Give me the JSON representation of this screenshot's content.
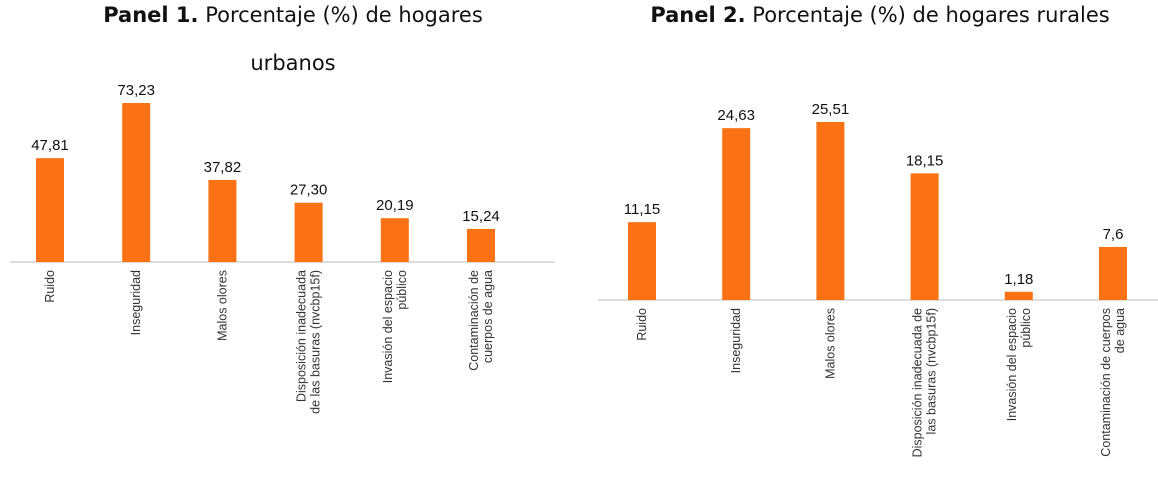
{
  "chart_data": [
    {
      "type": "bar",
      "title_bold": "Panel 1.",
      "title": [
        "Porcentaje (%) de hogares",
        "urbanos"
      ],
      "categories": [
        [
          "Ruido"
        ],
        [
          "Inseguridad"
        ],
        [
          "Malos olores"
        ],
        [
          "Disposición inadecuada",
          "de las basuras (nvcbp15f)"
        ],
        [
          "Invasión del espacio",
          "público"
        ],
        [
          "Contaminación de",
          "cuerpos de agua"
        ]
      ],
      "values": [
        47.81,
        73.23,
        37.82,
        27.3,
        20.19,
        15.24
      ],
      "value_labels": [
        "47,81",
        "73,23",
        "37,82",
        "27,30",
        "20,19",
        "15,24"
      ],
      "color": "#fa7214"
    },
    {
      "type": "bar",
      "title_bold": "Panel 2.",
      "title": [
        "Porcentaje (%) de hogares rurales"
      ],
      "categories": [
        [
          "Ruido"
        ],
        [
          "Inseguridad"
        ],
        [
          "Malos olores"
        ],
        [
          "Disposición inadecuada de",
          "las basuras (nvcbp15f)"
        ],
        [
          "Invasión del espacio",
          "público"
        ],
        [
          "Contaminación de cuerpos",
          "de agua"
        ]
      ],
      "values": [
        11.15,
        24.63,
        25.51,
        18.15,
        1.18,
        7.6
      ],
      "value_labels": [
        "11,15",
        "24,63",
        "25,51",
        "18,15",
        "1,18",
        "7,6"
      ],
      "color": "#fa7214"
    }
  ]
}
